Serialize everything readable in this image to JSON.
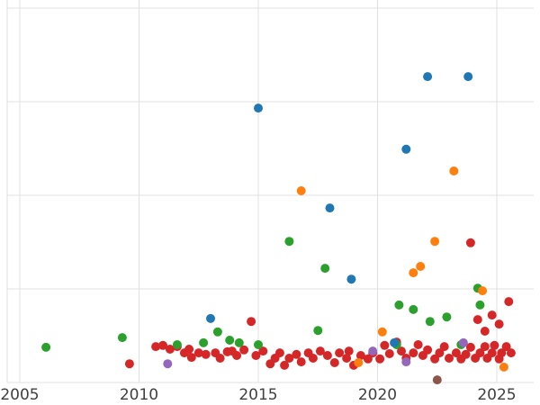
{
  "chart_data": {
    "type": "scatter",
    "title": "",
    "xlabel": "",
    "ylabel": "",
    "xlim": [
      2004.5,
      2026.6
    ],
    "ylim": [
      0,
      102
    ],
    "x_ticks": [
      2005,
      2010,
      2015,
      2020,
      2025
    ],
    "y_gridlines": [
      0,
      25,
      50,
      75,
      100
    ],
    "grid": true,
    "legend_position": "none",
    "marker_size": 5,
    "note": "y-axis tick labels cropped off left edge of screenshot",
    "series": [
      {
        "name": "red",
        "color": "#d62728",
        "points": [
          [
            2009.6,
            5.0
          ],
          [
            2010.7,
            9.6
          ],
          [
            2011.0,
            9.9
          ],
          [
            2011.3,
            8.9
          ],
          [
            2011.6,
            9.6
          ],
          [
            2011.9,
            7.9
          ],
          [
            2012.1,
            8.9
          ],
          [
            2012.2,
            6.7
          ],
          [
            2012.5,
            7.9
          ],
          [
            2012.8,
            7.5
          ],
          [
            2013.2,
            7.9
          ],
          [
            2013.4,
            6.5
          ],
          [
            2013.7,
            8.2
          ],
          [
            2013.9,
            8.4
          ],
          [
            2014.1,
            7.2
          ],
          [
            2014.4,
            8.7
          ],
          [
            2014.7,
            16.3
          ],
          [
            2014.9,
            7.2
          ],
          [
            2015.2,
            8.4
          ],
          [
            2015.5,
            5.0
          ],
          [
            2015.7,
            6.5
          ],
          [
            2015.9,
            7.9
          ],
          [
            2016.1,
            4.6
          ],
          [
            2016.3,
            6.5
          ],
          [
            2016.6,
            7.5
          ],
          [
            2016.8,
            5.5
          ],
          [
            2017.1,
            7.9
          ],
          [
            2017.3,
            6.5
          ],
          [
            2017.6,
            8.4
          ],
          [
            2017.9,
            7.2
          ],
          [
            2018.2,
            5.3
          ],
          [
            2018.4,
            7.9
          ],
          [
            2018.7,
            6.5
          ],
          [
            2018.8,
            8.4
          ],
          [
            2019.0,
            4.6
          ],
          [
            2019.3,
            7.2
          ],
          [
            2019.6,
            6.3
          ],
          [
            2019.8,
            7.9
          ],
          [
            2020.1,
            6.3
          ],
          [
            2020.3,
            9.9
          ],
          [
            2020.5,
            7.7
          ],
          [
            2020.8,
            10.8
          ],
          [
            2021.0,
            8.4
          ],
          [
            2021.2,
            6.5
          ],
          [
            2021.5,
            7.9
          ],
          [
            2021.7,
            10.1
          ],
          [
            2021.9,
            7.2
          ],
          [
            2022.1,
            8.7
          ],
          [
            2022.4,
            6.3
          ],
          [
            2022.6,
            7.9
          ],
          [
            2022.8,
            9.6
          ],
          [
            2023.0,
            6.5
          ],
          [
            2023.3,
            7.9
          ],
          [
            2023.5,
            6.3
          ],
          [
            2023.7,
            7.5
          ],
          [
            2023.9,
            9.4
          ],
          [
            2023.9,
            37.3
          ],
          [
            2024.1,
            6.5
          ],
          [
            2024.2,
            16.8
          ],
          [
            2024.3,
            7.9
          ],
          [
            2024.5,
            9.6
          ],
          [
            2024.5,
            13.7
          ],
          [
            2024.6,
            6.5
          ],
          [
            2024.8,
            7.9
          ],
          [
            2024.8,
            18.0
          ],
          [
            2024.9,
            9.9
          ],
          [
            2025.1,
            6.3
          ],
          [
            2025.1,
            15.6
          ],
          [
            2025.2,
            7.9
          ],
          [
            2025.4,
            9.6
          ],
          [
            2025.5,
            21.6
          ],
          [
            2025.6,
            7.9
          ]
        ]
      },
      {
        "name": "green",
        "color": "#2ca02c",
        "points": [
          [
            2006.1,
            9.4
          ],
          [
            2009.3,
            12.0
          ],
          [
            2011.6,
            10.1
          ],
          [
            2012.7,
            10.6
          ],
          [
            2013.3,
            13.5
          ],
          [
            2013.8,
            11.3
          ],
          [
            2014.2,
            10.6
          ],
          [
            2015.0,
            10.1
          ],
          [
            2016.3,
            37.7
          ],
          [
            2017.5,
            13.9
          ],
          [
            2017.8,
            30.5
          ],
          [
            2020.8,
            10.1
          ],
          [
            2020.9,
            20.7
          ],
          [
            2021.5,
            19.5
          ],
          [
            2022.2,
            16.3
          ],
          [
            2022.9,
            17.5
          ],
          [
            2023.5,
            10.1
          ],
          [
            2024.2,
            25.2
          ],
          [
            2024.3,
            20.7
          ]
        ]
      },
      {
        "name": "blue",
        "color": "#1f77b4",
        "points": [
          [
            2013.0,
            17.1
          ],
          [
            2015.0,
            73.3
          ],
          [
            2018.0,
            46.6
          ],
          [
            2018.9,
            27.6
          ],
          [
            2020.7,
            10.6
          ],
          [
            2021.2,
            62.3
          ],
          [
            2022.1,
            81.7
          ],
          [
            2023.8,
            81.7
          ]
        ]
      },
      {
        "name": "orange",
        "color": "#ff7f0e",
        "points": [
          [
            2016.8,
            51.2
          ],
          [
            2019.2,
            5.3
          ],
          [
            2020.2,
            13.5
          ],
          [
            2021.5,
            29.3
          ],
          [
            2021.8,
            31.0
          ],
          [
            2022.4,
            37.7
          ],
          [
            2023.2,
            56.5
          ],
          [
            2024.4,
            24.5
          ],
          [
            2025.3,
            4.1
          ]
        ]
      },
      {
        "name": "purple",
        "color": "#9467bd",
        "points": [
          [
            2011.2,
            5.0
          ],
          [
            2019.8,
            8.4
          ],
          [
            2021.2,
            5.5
          ],
          [
            2023.6,
            10.6
          ]
        ]
      },
      {
        "name": "brown",
        "color": "#8c564b",
        "points": [
          [
            2022.5,
            0.7
          ]
        ]
      }
    ]
  }
}
